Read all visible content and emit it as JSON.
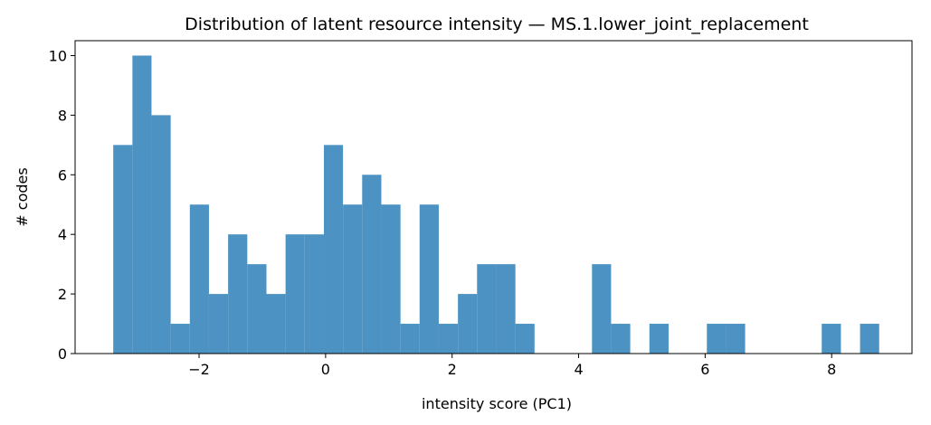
{
  "chart_data": {
    "type": "histogram",
    "title": "Distribution of latent resource intensity — MS.1.lower_joint_replacement",
    "x_label": "intensity score (PC1)",
    "y_label": "# codes",
    "color": "#4c93c3",
    "bins": [
      -3.357,
      -3.054,
      -2.752,
      -2.449,
      -2.146,
      -1.844,
      -1.541,
      -1.238,
      -0.935,
      -0.633,
      -0.33,
      -0.027,
      0.275,
      0.578,
      0.881,
      1.184,
      1.486,
      1.789,
      2.092,
      2.394,
      2.697,
      3.0,
      3.303,
      3.605,
      3.908,
      4.211,
      4.513,
      4.816,
      5.119,
      5.422,
      5.724,
      6.027,
      6.33,
      6.632,
      6.935,
      7.238,
      7.541,
      7.843,
      8.146,
      8.449,
      8.751
    ],
    "counts": [
      7,
      10,
      8,
      1,
      5,
      2,
      4,
      3,
      2,
      4,
      4,
      7,
      5,
      6,
      5,
      1,
      5,
      1,
      2,
      3,
      3,
      1,
      0,
      0,
      0,
      3,
      1,
      0,
      1,
      0,
      0,
      1,
      1,
      0,
      0,
      0,
      0,
      1,
      0,
      1
    ],
    "xlim": [
      -3.96,
      9.27
    ],
    "ylim": [
      0,
      10.5
    ],
    "xticks": [
      {
        "value": -2,
        "label": "−2"
      },
      0,
      2,
      4,
      6,
      8
    ],
    "yticks": [
      0,
      2,
      4,
      6,
      8,
      10
    ]
  }
}
